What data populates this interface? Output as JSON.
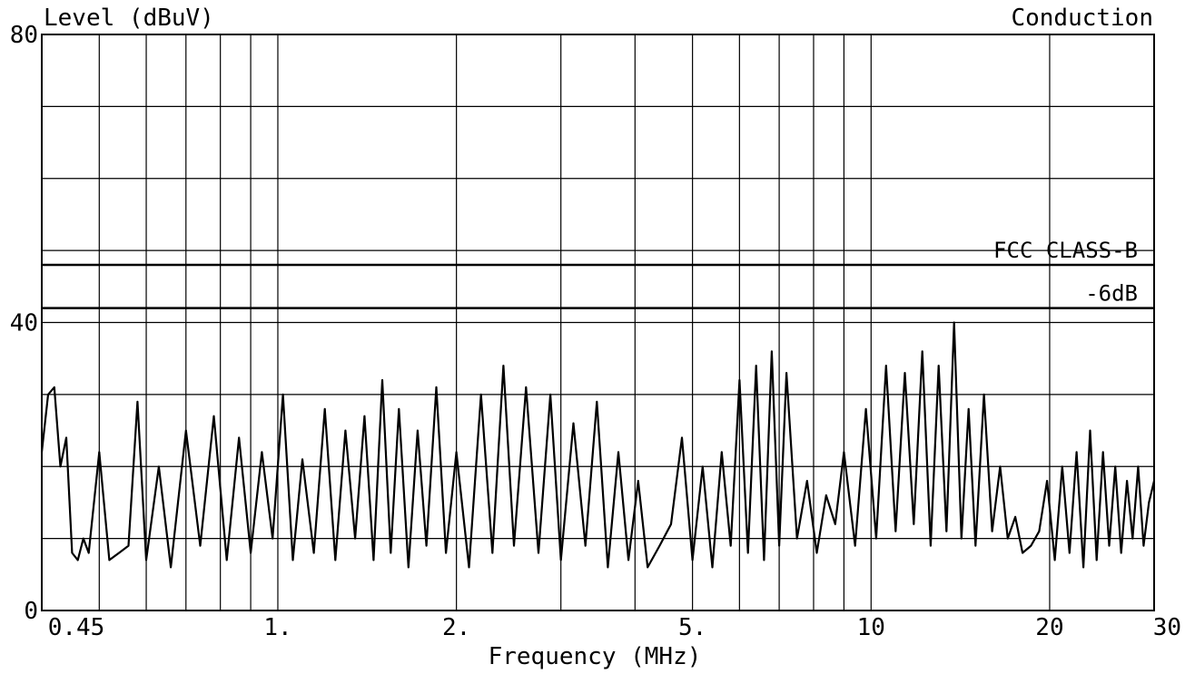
{
  "chart_data": {
    "type": "line",
    "title": "Conduction",
    "ylabel": "Level (dBuV)",
    "xlabel": "Frequency (MHz)",
    "x_scale": "log",
    "xlim": [
      0.4,
      30
    ],
    "ylim": [
      0,
      80
    ],
    "grid": true,
    "x_ticks": [
      {
        "value": 0.45,
        "label": "0.45"
      },
      {
        "value": 1,
        "label": "1."
      },
      {
        "value": 2,
        "label": "2."
      },
      {
        "value": 5,
        "label": "5."
      },
      {
        "value": 10,
        "label": "10"
      },
      {
        "value": 20,
        "label": "20"
      },
      {
        "value": 30,
        "label": "30"
      }
    ],
    "y_ticks": [
      {
        "value": 0,
        "label": "0"
      },
      {
        "value": 40,
        "label": "40"
      },
      {
        "value": 80,
        "label": "80"
      }
    ],
    "limit_lines": [
      {
        "name": "FCC CLASS-B",
        "y": 48
      },
      {
        "name": "-6dB",
        "y": 42
      }
    ],
    "series": [
      {
        "color": "#000000",
        "x": [
          0.4,
          0.41,
          0.42,
          0.43,
          0.44,
          0.45,
          0.46,
          0.47,
          0.48,
          0.5,
          0.52,
          0.54,
          0.56,
          0.58,
          0.6,
          0.63,
          0.66,
          0.7,
          0.74,
          0.78,
          0.82,
          0.86,
          0.9,
          0.94,
          0.98,
          1.02,
          1.06,
          1.1,
          1.15,
          1.2,
          1.25,
          1.3,
          1.35,
          1.4,
          1.45,
          1.5,
          1.55,
          1.6,
          1.66,
          1.72,
          1.78,
          1.85,
          1.92,
          2.0,
          2.1,
          2.2,
          2.3,
          2.4,
          2.5,
          2.62,
          2.75,
          2.88,
          3.0,
          3.15,
          3.3,
          3.45,
          3.6,
          3.75,
          3.9,
          4.05,
          4.2,
          4.4,
          4.6,
          4.8,
          5.0,
          5.2,
          5.4,
          5.6,
          5.8,
          6.0,
          6.2,
          6.4,
          6.6,
          6.8,
          7.0,
          7.2,
          7.5,
          7.8,
          8.1,
          8.4,
          8.7,
          9.0,
          9.4,
          9.8,
          10.2,
          10.6,
          11.0,
          11.4,
          11.8,
          12.2,
          12.6,
          13.0,
          13.4,
          13.8,
          14.2,
          14.6,
          15.0,
          15.5,
          16.0,
          16.5,
          17.0,
          17.5,
          18.0,
          18.6,
          19.2,
          19.8,
          20.4,
          21.0,
          21.6,
          22.2,
          22.8,
          23.4,
          24.0,
          24.6,
          25.2,
          25.8,
          26.4,
          27.0,
          27.6,
          28.2,
          28.8,
          29.4,
          30.0
        ],
        "y": [
          22,
          30,
          31,
          20,
          24,
          8,
          7,
          10,
          8,
          22,
          7,
          8,
          9,
          29,
          7,
          20,
          6,
          25,
          9,
          27,
          7,
          24,
          8,
          22,
          10,
          30,
          7,
          21,
          8,
          28,
          7,
          25,
          10,
          27,
          7,
          32,
          8,
          28,
          6,
          25,
          9,
          31,
          8,
          22,
          6,
          30,
          8,
          34,
          9,
          31,
          8,
          30,
          7,
          26,
          9,
          29,
          6,
          22,
          7,
          18,
          6,
          9,
          12,
          24,
          7,
          20,
          6,
          22,
          9,
          32,
          8,
          34,
          7,
          36,
          9,
          33,
          10,
          18,
          8,
          16,
          12,
          22,
          9,
          28,
          10,
          34,
          11,
          33,
          12,
          36,
          9,
          34,
          11,
          40,
          10,
          28,
          9,
          30,
          11,
          20,
          10,
          13,
          8,
          9,
          11,
          18,
          7,
          20,
          8,
          22,
          6,
          25,
          7,
          22,
          9,
          20,
          8,
          18,
          10,
          20,
          9,
          15,
          18
        ]
      }
    ]
  }
}
